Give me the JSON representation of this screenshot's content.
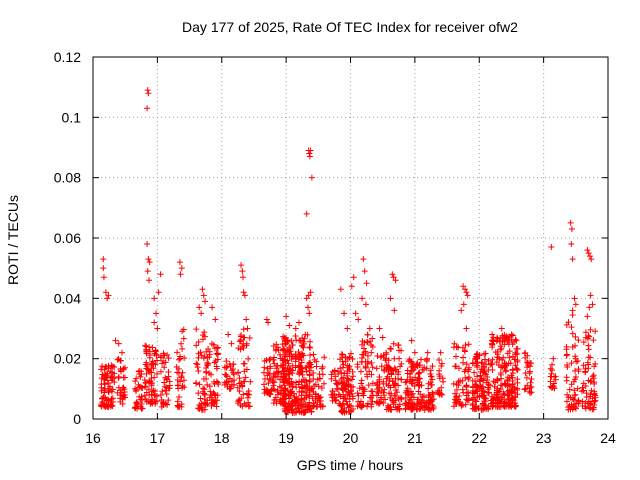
{
  "chart_data": {
    "type": "scatter",
    "title": "Day 177 of 2025, Rate Of TEC Index for receiver ofw2",
    "xlabel": "GPS time / hours",
    "ylabel": "ROTI / TECUs",
    "xlim": [
      16,
      24
    ],
    "ylim": [
      0,
      0.12
    ],
    "xticks": [
      "16",
      "17",
      "18",
      "19",
      "20",
      "21",
      "22",
      "23",
      "24"
    ],
    "yticks": [
      "0",
      "0.02",
      "0.04",
      "0.06",
      "0.08",
      "0.1",
      "0.12"
    ],
    "grid": true,
    "marker": "plus",
    "color": "#ff0000",
    "clusters": [
      {
        "x": [
          16.12,
          16.34
        ],
        "y": [
          0.004,
          0.018
        ],
        "density": 6
      },
      {
        "x": [
          16.38,
          16.5
        ],
        "y": [
          0.005,
          0.02
        ],
        "density": 3
      },
      {
        "x": [
          16.65,
          16.78
        ],
        "y": [
          0.003,
          0.018
        ],
        "density": 3
      },
      {
        "x": [
          16.8,
          17.0
        ],
        "y": [
          0.005,
          0.025
        ],
        "density": 6
      },
      {
        "x": [
          17.05,
          17.2
        ],
        "y": [
          0.004,
          0.022
        ],
        "density": 3
      },
      {
        "x": [
          17.3,
          17.42
        ],
        "y": [
          0.004,
          0.03
        ],
        "density": 4
      },
      {
        "x": [
          17.6,
          17.75
        ],
        "y": [
          0.003,
          0.03
        ],
        "density": 5
      },
      {
        "x": [
          17.75,
          17.95
        ],
        "y": [
          0.004,
          0.025
        ],
        "density": 4
      },
      {
        "x": [
          18.05,
          18.2
        ],
        "y": [
          0.01,
          0.02
        ],
        "density": 2
      },
      {
        "x": [
          18.25,
          18.45
        ],
        "y": [
          0.004,
          0.03
        ],
        "density": 4
      },
      {
        "x": [
          18.65,
          18.8
        ],
        "y": [
          0.008,
          0.02
        ],
        "density": 3
      },
      {
        "x": [
          18.8,
          19.0
        ],
        "y": [
          0.005,
          0.025
        ],
        "density": 6
      },
      {
        "x": [
          18.95,
          19.4
        ],
        "y": [
          0.002,
          0.028
        ],
        "density": 14
      },
      {
        "x": [
          19.4,
          19.6
        ],
        "y": [
          0.004,
          0.022
        ],
        "density": 5
      },
      {
        "x": [
          19.7,
          19.82
        ],
        "y": [
          0.006,
          0.018
        ],
        "density": 3
      },
      {
        "x": [
          19.82,
          20.05
        ],
        "y": [
          0.002,
          0.022
        ],
        "density": 6
      },
      {
        "x": [
          20.1,
          20.35
        ],
        "y": [
          0.004,
          0.028
        ],
        "density": 6
      },
      {
        "x": [
          20.4,
          20.55
        ],
        "y": [
          0.005,
          0.022
        ],
        "density": 3
      },
      {
        "x": [
          20.55,
          20.8
        ],
        "y": [
          0.003,
          0.025
        ],
        "density": 5
      },
      {
        "x": [
          20.85,
          21.05
        ],
        "y": [
          0.003,
          0.02
        ],
        "density": 5
      },
      {
        "x": [
          21.05,
          21.3
        ],
        "y": [
          0.003,
          0.02
        ],
        "density": 6
      },
      {
        "x": [
          21.35,
          21.45
        ],
        "y": [
          0.008,
          0.02
        ],
        "density": 2
      },
      {
        "x": [
          21.6,
          21.85
        ],
        "y": [
          0.004,
          0.025
        ],
        "density": 6
      },
      {
        "x": [
          21.9,
          22.2
        ],
        "y": [
          0.003,
          0.022
        ],
        "density": 10
      },
      {
        "x": [
          22.2,
          22.6
        ],
        "y": [
          0.004,
          0.028
        ],
        "density": 16
      },
      {
        "x": [
          22.7,
          22.82
        ],
        "y": [
          0.008,
          0.025
        ],
        "density": 3
      },
      {
        "x": [
          23.1,
          23.2
        ],
        "y": [
          0.01,
          0.02
        ],
        "density": 1
      },
      {
        "x": [
          23.35,
          23.55
        ],
        "y": [
          0.003,
          0.035
        ],
        "density": 6
      },
      {
        "x": [
          23.6,
          23.82
        ],
        "y": [
          0.003,
          0.03
        ],
        "density": 7
      }
    ],
    "outliers": [
      [
        16.16,
        0.053
      ],
      [
        16.16,
        0.05
      ],
      [
        16.17,
        0.047
      ],
      [
        16.2,
        0.042
      ],
      [
        16.22,
        0.04
      ],
      [
        16.24,
        0.041
      ],
      [
        16.35,
        0.026
      ],
      [
        16.4,
        0.025
      ],
      [
        16.45,
        0.022
      ],
      [
        16.85,
        0.109
      ],
      [
        16.86,
        0.108
      ],
      [
        16.84,
        0.103
      ],
      [
        16.84,
        0.058
      ],
      [
        16.86,
        0.053
      ],
      [
        16.88,
        0.052
      ],
      [
        16.85,
        0.049
      ],
      [
        16.87,
        0.046
      ],
      [
        16.95,
        0.04
      ],
      [
        16.98,
        0.035
      ],
      [
        17.02,
        0.042
      ],
      [
        17.05,
        0.048
      ],
      [
        17.0,
        0.03
      ],
      [
        16.95,
        0.032
      ],
      [
        17.35,
        0.052
      ],
      [
        17.38,
        0.05
      ],
      [
        17.36,
        0.048
      ],
      [
        17.7,
        0.043
      ],
      [
        17.72,
        0.041
      ],
      [
        17.74,
        0.039
      ],
      [
        17.65,
        0.037
      ],
      [
        17.68,
        0.035
      ],
      [
        17.85,
        0.037
      ],
      [
        17.9,
        0.033
      ],
      [
        18.1,
        0.028
      ],
      [
        18.15,
        0.025
      ],
      [
        18.3,
        0.051
      ],
      [
        18.32,
        0.049
      ],
      [
        18.33,
        0.047
      ],
      [
        18.34,
        0.042
      ],
      [
        18.36,
        0.041
      ],
      [
        18.38,
        0.033
      ],
      [
        18.4,
        0.03
      ],
      [
        18.7,
        0.033
      ],
      [
        18.72,
        0.032
      ],
      [
        19.0,
        0.034
      ],
      [
        19.05,
        0.031
      ],
      [
        19.15,
        0.03
      ],
      [
        19.2,
        0.032
      ],
      [
        19.32,
        0.068
      ],
      [
        19.35,
        0.089
      ],
      [
        19.36,
        0.088
      ],
      [
        19.37,
        0.087
      ],
      [
        19.38,
        0.089
      ],
      [
        19.4,
        0.08
      ],
      [
        19.32,
        0.04
      ],
      [
        19.35,
        0.041
      ],
      [
        19.38,
        0.042
      ],
      [
        19.34,
        0.037
      ],
      [
        19.36,
        0.035
      ],
      [
        19.85,
        0.043
      ],
      [
        19.9,
        0.035
      ],
      [
        19.95,
        0.03
      ],
      [
        20.05,
        0.047
      ],
      [
        20.02,
        0.044
      ],
      [
        20.08,
        0.035
      ],
      [
        20.12,
        0.033
      ],
      [
        20.2,
        0.053
      ],
      [
        20.22,
        0.049
      ],
      [
        20.25,
        0.045
      ],
      [
        20.18,
        0.04
      ],
      [
        20.24,
        0.038
      ],
      [
        20.3,
        0.03
      ],
      [
        20.45,
        0.03
      ],
      [
        20.5,
        0.027
      ],
      [
        20.65,
        0.048
      ],
      [
        20.67,
        0.047
      ],
      [
        20.7,
        0.046
      ],
      [
        20.62,
        0.04
      ],
      [
        20.68,
        0.036
      ],
      [
        20.95,
        0.026
      ],
      [
        21.0,
        0.022
      ],
      [
        21.2,
        0.022
      ],
      [
        21.4,
        0.022
      ],
      [
        21.75,
        0.044
      ],
      [
        21.78,
        0.043
      ],
      [
        21.8,
        0.042
      ],
      [
        21.82,
        0.041
      ],
      [
        21.76,
        0.038
      ],
      [
        21.72,
        0.036
      ],
      [
        21.8,
        0.03
      ],
      [
        22.2,
        0.028
      ],
      [
        22.35,
        0.03
      ],
      [
        22.5,
        0.028
      ],
      [
        23.12,
        0.057
      ],
      [
        23.15,
        0.02
      ],
      [
        23.13,
        0.018
      ],
      [
        23.42,
        0.065
      ],
      [
        23.44,
        0.063
      ],
      [
        23.43,
        0.058
      ],
      [
        23.45,
        0.053
      ],
      [
        23.48,
        0.04
      ],
      [
        23.5,
        0.038
      ],
      [
        23.45,
        0.036
      ],
      [
        23.68,
        0.056
      ],
      [
        23.7,
        0.055
      ],
      [
        23.72,
        0.054
      ],
      [
        23.74,
        0.053
      ],
      [
        23.73,
        0.041
      ],
      [
        23.71,
        0.037
      ],
      [
        23.76,
        0.038
      ],
      [
        23.68,
        0.034
      ]
    ]
  }
}
